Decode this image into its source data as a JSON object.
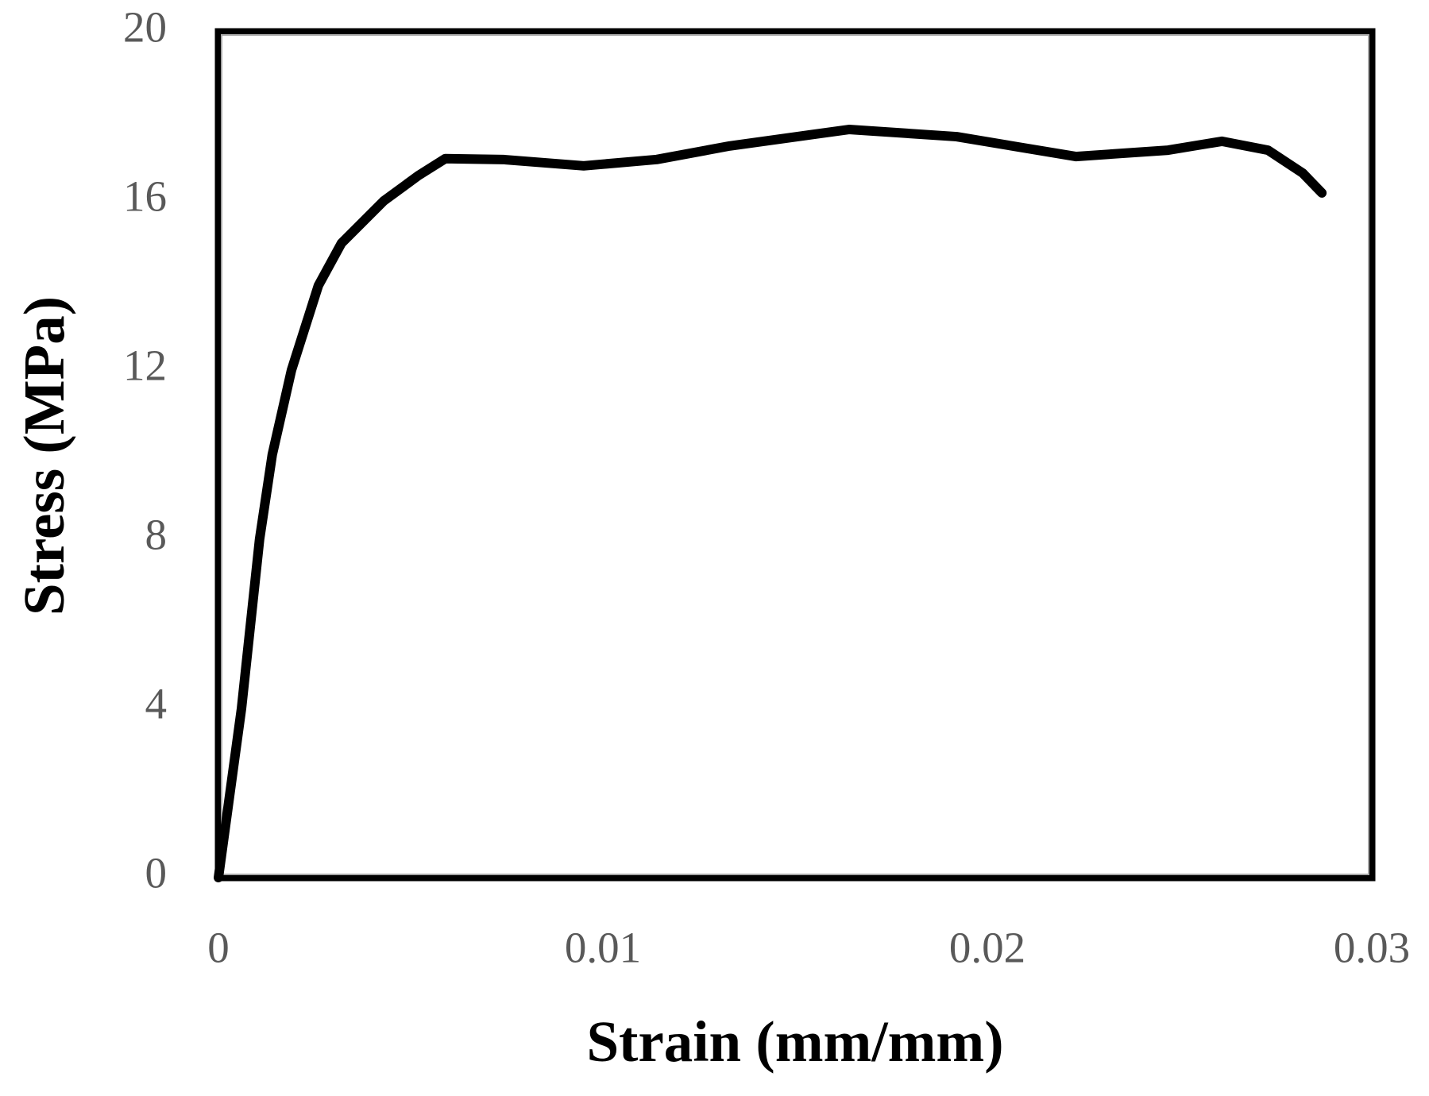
{
  "chart_data": {
    "type": "line",
    "x_label": "Strain (mm/mm)",
    "y_label": "Stress (MPa)",
    "x": [
      0,
      0.0006,
      0.00107,
      0.0014,
      0.0019,
      0.0026,
      0.0032,
      0.0043,
      0.0052,
      0.0059,
      0.0074,
      0.0095,
      0.0114,
      0.0133,
      0.0164,
      0.0192,
      0.0223,
      0.0247,
      0.0261,
      0.0273,
      0.0282,
      0.0287
    ],
    "series": [
      {
        "color": "#000000",
        "values": [
          0,
          4,
          8,
          10,
          12,
          14,
          15,
          16,
          16.6,
          17.0,
          16.98,
          16.83,
          16.98,
          17.3,
          17.69,
          17.52,
          17.05,
          17.2,
          17.41,
          17.2,
          16.66,
          16.19
        ]
      }
    ],
    "xlim": [
      0,
      0.03
    ],
    "xticks": [
      0,
      0.01,
      0.02,
      0.03
    ],
    "ylim": [
      0,
      20
    ],
    "yticks": [
      0,
      4,
      8,
      12,
      16,
      20
    ]
  }
}
